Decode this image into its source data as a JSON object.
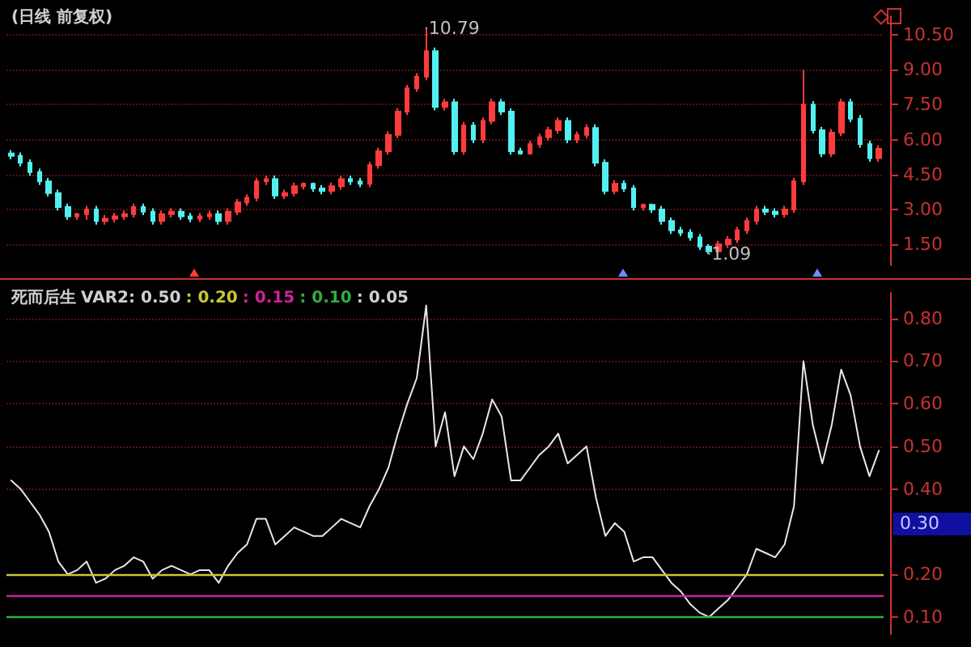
{
  "chart_data": [
    {
      "type": "candlestick",
      "title": "(日线 前复权)",
      "categories": [
        null,
        null,
        null,
        null,
        null,
        null,
        null,
        null,
        null,
        null,
        null,
        null,
        null,
        null,
        null,
        null,
        null,
        null,
        null,
        null,
        null,
        null,
        null,
        null,
        null,
        null,
        null,
        null,
        null,
        null,
        null,
        null,
        null,
        null,
        null,
        null,
        null,
        null,
        null,
        null,
        null,
        null,
        null,
        null,
        null,
        null,
        null,
        null,
        null,
        null,
        null,
        null,
        null,
        null,
        null,
        null,
        null,
        null,
        null,
        null,
        null,
        null,
        null,
        null,
        null,
        null,
        null,
        null,
        null,
        null,
        null,
        null,
        null,
        null,
        null,
        null,
        null,
        null,
        null,
        null,
        null,
        null,
        null,
        null,
        null,
        null,
        null,
        null,
        null,
        null,
        null,
        null,
        null
      ],
      "ohlc": [
        [
          5.4,
          5.55,
          5.15,
          5.3
        ],
        [
          5.3,
          5.45,
          4.85,
          5.0
        ],
        [
          5.0,
          5.15,
          4.45,
          4.6
        ],
        [
          4.6,
          4.75,
          4.05,
          4.2
        ],
        [
          4.2,
          4.35,
          3.55,
          3.7
        ],
        [
          3.7,
          3.85,
          2.95,
          3.1
        ],
        [
          3.1,
          3.25,
          2.55,
          2.7
        ],
        [
          2.7,
          2.85,
          2.55,
          2.8
        ],
        [
          2.8,
          3.15,
          2.55,
          3.0
        ],
        [
          3.0,
          3.15,
          2.35,
          2.5
        ],
        [
          2.5,
          2.75,
          2.35,
          2.6
        ],
        [
          2.6,
          2.85,
          2.45,
          2.7
        ],
        [
          2.7,
          2.95,
          2.55,
          2.8
        ],
        [
          2.8,
          3.25,
          2.65,
          3.1
        ],
        [
          3.1,
          3.25,
          2.75,
          2.9
        ],
        [
          2.9,
          3.05,
          2.35,
          2.5
        ],
        [
          2.5,
          2.95,
          2.35,
          2.8
        ],
        [
          2.8,
          3.05,
          2.65,
          2.9
        ],
        [
          2.9,
          3.05,
          2.55,
          2.7
        ],
        [
          2.7,
          2.85,
          2.45,
          2.6
        ],
        [
          2.6,
          2.85,
          2.45,
          2.7
        ],
        [
          2.7,
          2.95,
          2.55,
          2.8
        ],
        [
          2.8,
          2.95,
          2.35,
          2.5
        ],
        [
          2.5,
          3.05,
          2.35,
          2.9
        ],
        [
          2.9,
          3.45,
          2.75,
          3.3
        ],
        [
          3.3,
          3.65,
          3.15,
          3.5
        ],
        [
          3.5,
          4.35,
          3.35,
          4.2
        ],
        [
          4.2,
          4.45,
          4.05,
          4.3
        ],
        [
          4.3,
          4.45,
          3.45,
          3.6
        ],
        [
          3.6,
          3.85,
          3.45,
          3.7
        ],
        [
          3.7,
          4.15,
          3.55,
          4.0
        ],
        [
          4.0,
          4.15,
          3.85,
          4.1
        ],
        [
          4.1,
          4.15,
          3.75,
          3.9
        ],
        [
          3.9,
          4.05,
          3.65,
          3.8
        ],
        [
          3.8,
          4.15,
          3.65,
          4.0
        ],
        [
          4.0,
          4.45,
          3.85,
          4.3
        ],
        [
          4.3,
          4.45,
          4.05,
          4.2
        ],
        [
          4.2,
          4.35,
          3.95,
          4.1
        ],
        [
          4.1,
          5.05,
          3.95,
          4.9
        ],
        [
          4.9,
          5.65,
          4.75,
          5.5
        ],
        [
          5.5,
          6.35,
          5.35,
          6.2
        ],
        [
          6.2,
          7.35,
          6.05,
          7.2
        ],
        [
          7.2,
          8.35,
          7.05,
          8.2
        ],
        [
          8.2,
          8.85,
          8.05,
          8.7
        ],
        [
          8.7,
          10.79,
          8.55,
          9.8
        ],
        [
          9.8,
          9.95,
          7.25,
          7.4
        ],
        [
          7.4,
          7.75,
          7.25,
          7.6
        ],
        [
          7.6,
          7.75,
          5.35,
          5.5
        ],
        [
          5.5,
          6.75,
          5.35,
          6.6
        ],
        [
          6.6,
          6.75,
          5.85,
          6.0
        ],
        [
          6.0,
          6.95,
          5.85,
          6.8
        ],
        [
          6.8,
          7.75,
          6.65,
          7.6
        ],
        [
          7.6,
          7.75,
          7.05,
          7.2
        ],
        [
          7.2,
          7.35,
          5.35,
          5.5
        ],
        [
          5.5,
          5.65,
          5.35,
          5.4
        ],
        [
          5.4,
          5.95,
          5.35,
          5.8
        ],
        [
          5.8,
          6.25,
          5.65,
          6.1
        ],
        [
          6.1,
          6.55,
          5.95,
          6.4
        ],
        [
          6.4,
          6.95,
          6.25,
          6.8
        ],
        [
          6.8,
          6.95,
          5.85,
          6.0
        ],
        [
          6.0,
          6.35,
          5.85,
          6.2
        ],
        [
          6.2,
          6.65,
          6.05,
          6.5
        ],
        [
          6.5,
          6.65,
          4.85,
          5.0
        ],
        [
          5.0,
          5.15,
          3.65,
          3.8
        ],
        [
          3.8,
          4.25,
          3.65,
          4.1
        ],
        [
          4.1,
          4.25,
          3.75,
          3.9
        ],
        [
          3.9,
          4.05,
          2.95,
          3.1
        ],
        [
          3.1,
          3.25,
          2.95,
          3.2
        ],
        [
          3.2,
          3.25,
          2.85,
          3.0
        ],
        [
          3.0,
          3.15,
          2.35,
          2.5
        ],
        [
          2.5,
          2.65,
          1.95,
          2.1
        ],
        [
          2.1,
          2.25,
          1.85,
          2.0
        ],
        [
          2.0,
          2.15,
          1.65,
          1.8
        ],
        [
          1.8,
          1.95,
          1.25,
          1.4
        ],
        [
          1.4,
          1.5,
          1.09,
          1.2
        ],
        [
          1.2,
          1.65,
          1.15,
          1.5
        ],
        [
          1.5,
          1.85,
          1.35,
          1.7
        ],
        [
          1.7,
          2.25,
          1.55,
          2.1
        ],
        [
          2.1,
          2.65,
          1.95,
          2.5
        ],
        [
          2.5,
          3.15,
          2.35,
          3.0
        ],
        [
          3.0,
          3.15,
          2.75,
          2.9
        ],
        [
          2.9,
          3.05,
          2.65,
          2.8
        ],
        [
          2.8,
          3.15,
          2.65,
          3.0
        ],
        [
          3.0,
          4.35,
          2.85,
          4.2
        ],
        [
          4.2,
          9.0,
          4.05,
          7.5
        ],
        [
          7.5,
          7.65,
          6.25,
          6.4
        ],
        [
          6.4,
          6.55,
          5.25,
          5.4
        ],
        [
          5.4,
          6.45,
          5.25,
          6.3
        ],
        [
          6.3,
          7.75,
          6.15,
          7.6
        ],
        [
          7.6,
          7.75,
          6.75,
          6.9
        ],
        [
          6.9,
          7.05,
          5.65,
          5.8
        ],
        [
          5.8,
          5.95,
          5.05,
          5.2
        ],
        [
          5.2,
          5.75,
          5.05,
          5.6
        ]
      ],
      "ylim": [
        0.6,
        11.3
      ],
      "yticks": [
        {
          "value": 1.5,
          "label": "1.50"
        },
        {
          "value": 3,
          "label": "3.00"
        },
        {
          "value": 4.5,
          "label": "4.50"
        },
        {
          "value": 6,
          "label": "6.00"
        },
        {
          "value": 7.5,
          "label": "7.50"
        },
        {
          "value": 9,
          "label": "9.00"
        },
        {
          "value": 10.5,
          "label": "10.50"
        }
      ],
      "grid": "y",
      "annotations": [
        "10.79",
        "1.09"
      ]
    },
    {
      "type": "line",
      "title": "死而后生",
      "subtitle": "VAR2: 0.50",
      "categories": [
        null,
        null,
        null,
        null,
        null,
        null,
        null,
        null,
        null,
        null,
        null,
        null,
        null,
        null,
        null,
        null,
        null,
        null,
        null,
        null,
        null,
        null,
        null,
        null,
        null,
        null,
        null,
        null,
        null,
        null,
        null,
        null,
        null,
        null,
        null,
        null,
        null,
        null,
        null,
        null,
        null,
        null,
        null,
        null,
        null,
        null,
        null,
        null,
        null,
        null,
        null,
        null,
        null,
        null,
        null,
        null,
        null,
        null,
        null,
        null,
        null,
        null,
        null,
        null,
        null,
        null,
        null,
        null,
        null,
        null,
        null,
        null,
        null,
        null,
        null,
        null,
        null,
        null,
        null,
        null,
        null,
        null,
        null,
        null,
        null,
        null,
        null,
        null,
        null,
        null,
        null,
        null,
        null
      ],
      "series": [
        {
          "color": "#e8e8e8",
          "values": [
            0.42,
            0.4,
            0.37,
            0.34,
            0.3,
            0.23,
            0.2,
            0.21,
            0.23,
            0.18,
            0.19,
            0.21,
            0.22,
            0.24,
            0.23,
            0.19,
            0.21,
            0.22,
            0.21,
            0.2,
            0.21,
            0.21,
            0.18,
            0.22,
            0.25,
            0.27,
            0.33,
            0.33,
            0.27,
            0.29,
            0.31,
            0.3,
            0.29,
            0.29,
            0.31,
            0.33,
            0.32,
            0.31,
            0.36,
            0.4,
            0.45,
            0.53,
            0.6,
            0.66,
            0.83,
            0.5,
            0.58,
            0.43,
            0.5,
            0.47,
            0.53,
            0.61,
            0.57,
            0.42,
            0.42,
            0.45,
            0.48,
            0.5,
            0.53,
            0.46,
            0.48,
            0.5,
            0.38,
            0.29,
            0.32,
            0.3,
            0.23,
            0.24,
            0.24,
            0.21,
            0.18,
            0.16,
            0.13,
            0.11,
            0.1,
            0.12,
            0.14,
            0.17,
            0.2,
            0.26,
            0.25,
            0.24,
            0.27,
            0.36,
            0.7,
            0.55,
            0.46,
            0.55,
            0.68,
            0.62,
            0.5,
            0.43,
            0.49
          ]
        }
      ],
      "ylim": [
        0.06,
        0.86
      ],
      "yticks": [
        {
          "value": 0.1,
          "label": "0.10"
        },
        {
          "value": 0.2,
          "label": "0.20"
        },
        {
          "value": 0.4,
          "label": "0.40"
        },
        {
          "value": 0.5,
          "label": "0.50"
        },
        {
          "value": 0.6,
          "label": "0.60"
        },
        {
          "value": 0.7,
          "label": "0.70"
        },
        {
          "value": 0.8,
          "label": "0.80"
        }
      ],
      "grid": "y",
      "ref_lines": [
        {
          "axis": "y",
          "value": 0.2,
          "label": ": 0.20",
          "color": "#c8c832"
        },
        {
          "axis": "y",
          "value": 0.15,
          "label": ": 0.15",
          "color": "#d0209c"
        },
        {
          "axis": "y",
          "value": 0.1,
          "label": ": 0.10",
          "color": "#30b040"
        }
      ],
      "annotations": [
        ": 0.05",
        "0.30"
      ]
    }
  ]
}
